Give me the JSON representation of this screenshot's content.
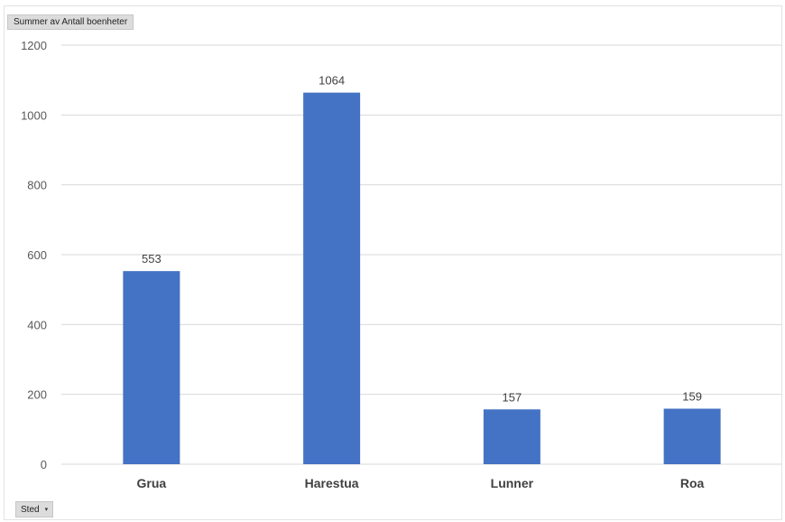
{
  "field_button": {
    "label": "Summer av Antall boenheter"
  },
  "axis_field_button": {
    "label": "Sted",
    "caret": "▾"
  },
  "colors": {
    "bar": "#4472C4",
    "grid": "#d9d9d9"
  },
  "chart_data": {
    "type": "bar",
    "categories": [
      "Grua",
      "Harestua",
      "Lunner",
      "Roa"
    ],
    "values": [
      553,
      1064,
      157,
      159
    ],
    "ylim": [
      0,
      1200
    ],
    "yticks": [
      0,
      200,
      400,
      600,
      800,
      1000,
      1200
    ],
    "grid": true,
    "data_labels": true,
    "legend": "none"
  }
}
